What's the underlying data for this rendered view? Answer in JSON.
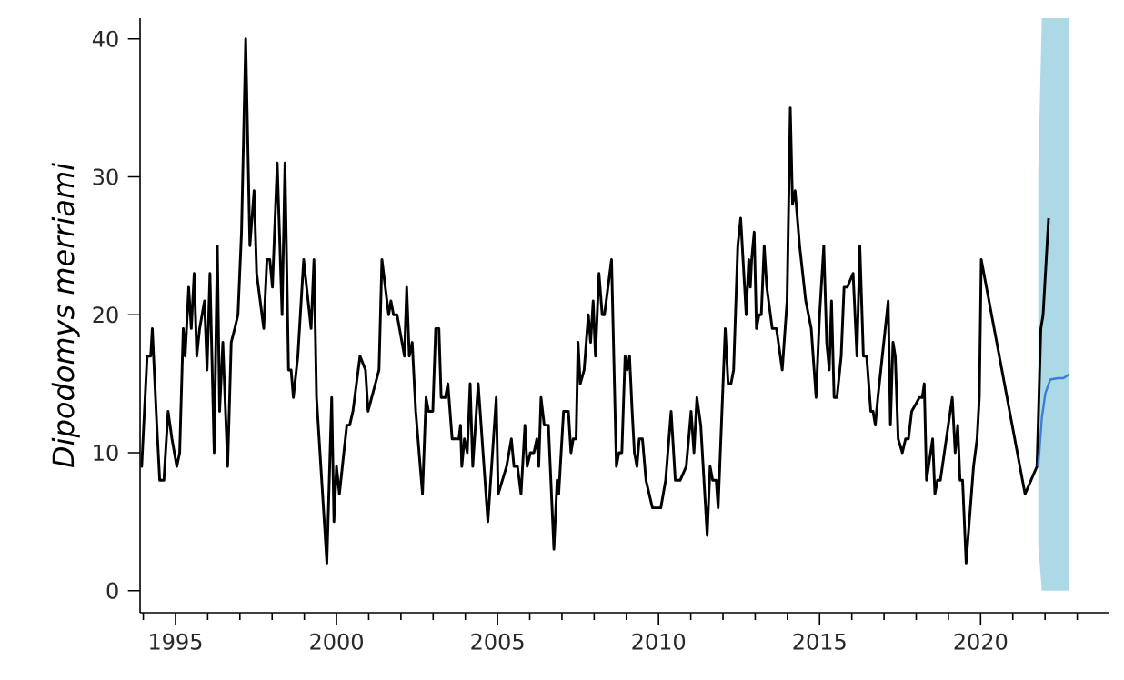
{
  "chart_data": {
    "type": "line",
    "ylabel": "Dipodomys merriami",
    "xlim": [
      1993.9,
      2024
    ],
    "ylim": [
      -1.6,
      41.5
    ],
    "xticks": [
      {
        "value": 1994,
        "label": null
      },
      1995,
      {
        "value": 1996,
        "label": null
      },
      {
        "value": 1997,
        "label": null
      },
      {
        "value": 1998,
        "label": null
      },
      {
        "value": 1999,
        "label": null
      },
      2000,
      {
        "value": 2001,
        "label": null
      },
      {
        "value": 2002,
        "label": null
      },
      {
        "value": 2003,
        "label": null
      },
      {
        "value": 2004,
        "label": null
      },
      2005,
      {
        "value": 2006,
        "label": null
      },
      {
        "value": 2007,
        "label": null
      },
      {
        "value": 2008,
        "label": null
      },
      {
        "value": 2009,
        "label": null
      },
      2010,
      {
        "value": 2011,
        "label": null
      },
      {
        "value": 2012,
        "label": null
      },
      {
        "value": 2013,
        "label": null
      },
      {
        "value": 2014,
        "label": null
      },
      2015,
      {
        "value": 2016,
        "label": null
      },
      {
        "value": 2017,
        "label": null
      },
      {
        "value": 2018,
        "label": null
      },
      {
        "value": 2019,
        "label": null
      },
      2020,
      {
        "value": 2021,
        "label": null
      },
      {
        "value": 2022,
        "label": null
      },
      {
        "value": 2023,
        "label": null
      }
    ],
    "yticks": [
      0,
      10,
      20,
      30,
      40
    ],
    "grid": false,
    "marker": "none",
    "line_style": "solid",
    "series": [
      {
        "color": "#000000",
        "x": [
          1993.92,
          1993.95,
          1994.12,
          1994.23,
          1994.28,
          1994.42,
          1994.51,
          1994.64,
          1994.77,
          1994.89,
          1995.04,
          1995.13,
          1995.24,
          1995.3,
          1995.41,
          1995.49,
          1995.58,
          1995.66,
          1995.75,
          1995.9,
          1995.98,
          1996.07,
          1996.13,
          1996.2,
          1996.3,
          1996.37,
          1996.47,
          1996.62,
          1996.73,
          1996.84,
          1996.94,
          1997.05,
          1997.18,
          1997.31,
          1997.44,
          1997.52,
          1997.74,
          1997.84,
          1997.93,
          1998.01,
          1998.16,
          1998.31,
          1998.4,
          1998.51,
          1998.59,
          1998.66,
          1998.8,
          1998.98,
          1999.21,
          1999.3,
          1999.38,
          1999.7,
          1999.85,
          1999.92,
          2000.0,
          2000.09,
          2000.32,
          2000.41,
          2000.51,
          2000.73,
          2000.9,
          2000.98,
          2001.32,
          2001.41,
          2001.62,
          2001.69,
          2001.77,
          2001.88,
          2002.11,
          2002.18,
          2002.26,
          2002.35,
          2002.46,
          2002.67,
          2002.78,
          2002.86,
          2002.99,
          2003.08,
          2003.18,
          2003.25,
          2003.38,
          2003.46,
          2003.59,
          2003.8,
          2003.85,
          2003.89,
          2003.97,
          2004.06,
          2004.15,
          2004.23,
          2004.4,
          2004.7,
          2004.96,
          2005.02,
          2005.28,
          2005.43,
          2005.51,
          2005.62,
          2005.73,
          2005.85,
          2005.92,
          2006.02,
          2006.13,
          2006.22,
          2006.28,
          2006.35,
          2006.45,
          2006.58,
          2006.75,
          2006.85,
          2006.9,
          2007.05,
          2007.2,
          2007.28,
          2007.35,
          2007.44,
          2007.5,
          2007.57,
          2007.69,
          2007.82,
          2007.89,
          2007.97,
          2008.04,
          2008.15,
          2008.25,
          2008.32,
          2008.54,
          2008.69,
          2008.77,
          2008.86,
          2008.96,
          2009.03,
          2009.1,
          2009.18,
          2009.25,
          2009.33,
          2009.4,
          2009.5,
          2009.61,
          2009.81,
          2010.07,
          2010.22,
          2010.39,
          2010.52,
          2010.67,
          2010.86,
          2011.01,
          2011.1,
          2011.19,
          2011.31,
          2011.51,
          2011.6,
          2011.68,
          2011.79,
          2011.85,
          2012.07,
          2012.16,
          2012.25,
          2012.33,
          2012.46,
          2012.55,
          2012.72,
          2012.8,
          2012.85,
          2012.89,
          2012.97,
          2013.04,
          2013.12,
          2013.19,
          2013.28,
          2013.36,
          2013.53,
          2013.66,
          2013.84,
          2013.99,
          2014.09,
          2014.16,
          2014.24,
          2014.38,
          2014.57,
          2014.74,
          2014.89,
          2015.0,
          2015.13,
          2015.22,
          2015.3,
          2015.37,
          2015.45,
          2015.54,
          2015.67,
          2015.76,
          2015.86,
          2016.04,
          2016.16,
          2016.25,
          2016.36,
          2016.46,
          2016.59,
          2016.66,
          2016.73,
          2016.81,
          2017.13,
          2017.2,
          2017.28,
          2017.35,
          2017.44,
          2017.57,
          2017.67,
          2017.76,
          2017.86,
          2018.1,
          2018.19,
          2018.25,
          2018.32,
          2018.51,
          2018.58,
          2018.66,
          2018.75,
          2019.12,
          2019.21,
          2019.29,
          2019.36,
          2019.44,
          2019.55,
          2019.78,
          2019.89,
          2019.96,
          2020.02,
          2021.38,
          2021.75,
          2021.87,
          2021.94,
          2022.11
        ],
        "values": [
          9,
          9,
          17,
          17,
          19,
          12,
          8,
          8,
          13,
          11,
          9,
          10,
          19,
          17,
          22,
          19,
          23,
          17,
          19,
          21,
          16,
          23,
          17,
          10,
          25,
          13,
          18,
          9,
          18,
          19,
          20,
          26,
          40,
          25,
          29,
          23,
          19,
          24,
          24,
          22,
          31,
          20,
          31,
          16,
          16,
          14,
          17,
          24,
          19,
          24,
          14,
          2,
          14,
          5,
          9,
          7,
          12,
          12,
          13,
          17,
          16,
          13,
          16,
          24,
          20,
          21,
          20,
          20,
          17,
          22,
          17,
          18,
          13,
          7,
          14,
          13,
          13,
          19,
          19,
          14,
          14,
          15,
          11,
          11,
          12,
          9,
          11,
          10,
          15,
          9,
          15,
          5,
          14,
          7,
          9,
          11,
          9,
          9,
          7,
          12,
          9,
          10,
          10,
          11,
          9,
          14,
          12,
          12,
          3,
          8,
          7,
          13,
          13,
          10,
          11,
          11,
          18,
          15,
          16,
          20,
          18,
          21,
          17,
          23,
          20,
          20,
          24,
          9,
          10,
          10,
          17,
          16,
          17,
          13,
          10,
          9,
          11,
          11,
          8,
          6,
          6,
          8,
          13,
          8,
          8,
          9,
          13,
          10,
          14,
          12,
          4,
          9,
          8,
          8,
          6,
          19,
          15,
          15,
          16,
          25,
          27,
          20,
          24,
          22,
          24,
          26,
          19,
          20,
          20,
          25,
          22,
          19,
          19,
          16,
          21,
          35,
          28,
          29,
          25,
          21,
          19,
          14,
          20,
          25,
          18,
          16,
          21,
          14,
          14,
          17,
          22,
          22,
          23,
          17,
          25,
          17,
          17,
          13,
          13,
          12,
          14,
          21,
          12,
          18,
          17,
          11,
          10,
          11,
          11,
          13,
          14,
          14,
          15,
          8,
          11,
          7,
          8,
          8,
          14,
          10,
          12,
          8,
          8,
          2,
          9,
          11,
          14,
          24,
          7,
          9,
          19,
          20,
          27
        ]
      },
      {
        "color": "#3b7dd8",
        "x": [
          2021.79,
          2021.9,
          2022.01,
          2022.16,
          2022.39,
          2022.57,
          2022.76
        ],
        "values": [
          9,
          12.5,
          14.3,
          15.3,
          15.4,
          15.4,
          15.7
        ],
        "lower": [
          3.3,
          0,
          0,
          0,
          0,
          0,
          0
        ],
        "upper": [
          30.4,
          41.5,
          41.5,
          41.5,
          41.5,
          41.5,
          41.5
        ]
      }
    ]
  }
}
